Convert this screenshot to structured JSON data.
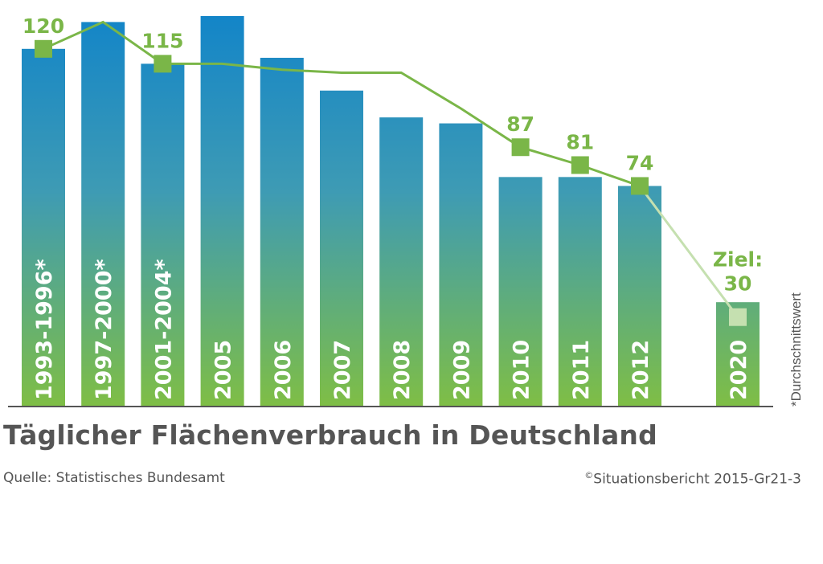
{
  "chart_data": {
    "type": "bar",
    "title": "Täglicher Flächenverbrauch in Deutschland",
    "categories": [
      "1993-1996*",
      "1997-2000*",
      "2001-2004*",
      "2005",
      "2006",
      "2007",
      "2008",
      "2009",
      "2010",
      "2011",
      "2012",
      "2020"
    ],
    "values": [
      120,
      129,
      115,
      131,
      117,
      106,
      97,
      95,
      77,
      77,
      74,
      35
    ],
    "trend_line": {
      "values": [
        120,
        129,
        115,
        115,
        113,
        112,
        112,
        100,
        87,
        81,
        74,
        30
      ],
      "marker_indices": [
        0,
        2,
        8,
        9,
        10,
        11
      ],
      "labels": [
        {
          "index": 0,
          "text": "120"
        },
        {
          "index": 2,
          "text": "115"
        },
        {
          "index": 8,
          "text": "87"
        },
        {
          "index": 9,
          "text": "81"
        },
        {
          "index": 10,
          "text": "74"
        },
        {
          "index": 11,
          "text": "Ziel:",
          "text2": "30"
        }
      ]
    },
    "footnote": "*Durchschnittswert",
    "ylim": [
      0,
      131
    ],
    "colors": {
      "bar_top": "#1385c8",
      "bar_bottom": "#7fbe45",
      "line": "#7ab648",
      "line_target": "#c5e0b0",
      "axis": "#555555"
    }
  },
  "source": "Quelle: Statistisches Bundesamt",
  "credit_symbol": "©",
  "credit": "Situationsbericht 2015-Gr21-3"
}
